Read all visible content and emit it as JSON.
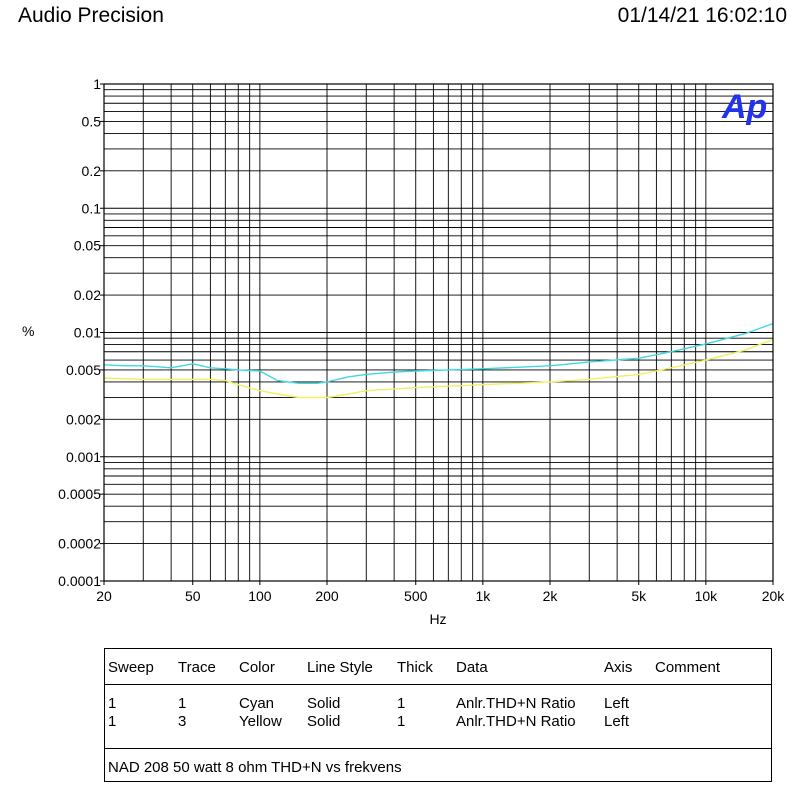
{
  "header": {
    "title": "Audio Precision",
    "timestamp": "01/14/21 16:02:10"
  },
  "chart_data": {
    "type": "line",
    "xscale": "log",
    "yscale": "log",
    "xlabel": "Hz",
    "ylabel": "%",
    "xlim": [
      20,
      20000
    ],
    "ylim": [
      0.0001,
      1
    ],
    "grid": true,
    "logo": "Ap",
    "logo_color": "#2233ee",
    "x_ticks": [
      {
        "value": 20,
        "label": "20"
      },
      {
        "value": 50,
        "label": "50"
      },
      {
        "value": 100,
        "label": "100"
      },
      {
        "value": 200,
        "label": "200"
      },
      {
        "value": 500,
        "label": "500"
      },
      {
        "value": 1000,
        "label": "1k"
      },
      {
        "value": 2000,
        "label": "2k"
      },
      {
        "value": 5000,
        "label": "5k"
      },
      {
        "value": 10000,
        "label": "10k"
      },
      {
        "value": 20000,
        "label": "20k"
      }
    ],
    "y_ticks": [
      {
        "value": 1,
        "label": "1"
      },
      {
        "value": 0.5,
        "label": "0.5"
      },
      {
        "value": 0.2,
        "label": "0.2"
      },
      {
        "value": 0.1,
        "label": "0.1"
      },
      {
        "value": 0.05,
        "label": "0.05"
      },
      {
        "value": 0.02,
        "label": "0.02"
      },
      {
        "value": 0.01,
        "label": "0.01"
      },
      {
        "value": 0.005,
        "label": "0.005"
      },
      {
        "value": 0.002,
        "label": "0.002"
      },
      {
        "value": 0.001,
        "label": "0.001"
      },
      {
        "value": 0.0005,
        "label": "0.0005"
      },
      {
        "value": 0.0002,
        "label": "0.0002"
      },
      {
        "value": 0.0001,
        "label": "0.0001"
      }
    ],
    "series": [
      {
        "name": "Trace 1 Cyan",
        "color": "#40d8e0",
        "x": [
          20,
          25,
          30,
          35,
          40,
          50,
          60,
          70,
          80,
          100,
          120,
          150,
          180,
          200,
          250,
          300,
          400,
          500,
          700,
          1000,
          2000,
          3000,
          5000,
          7000,
          10000,
          15000,
          20000
        ],
        "values": [
          0.0055,
          0.0054,
          0.0054,
          0.0053,
          0.0052,
          0.0056,
          0.0052,
          0.0051,
          0.005,
          0.0049,
          0.0041,
          0.0039,
          0.0039,
          0.004,
          0.0044,
          0.0046,
          0.0048,
          0.0049,
          0.005,
          0.0051,
          0.0054,
          0.0058,
          0.0062,
          0.007,
          0.0081,
          0.0098,
          0.0118
        ]
      },
      {
        "name": "Trace 3 Yellow",
        "color": "#f0f060",
        "x": [
          20,
          30,
          40,
          50,
          60,
          70,
          80,
          100,
          120,
          150,
          200,
          250,
          300,
          500,
          1000,
          2000,
          3000,
          5000,
          7000,
          10000,
          15000,
          20000
        ],
        "values": [
          0.0043,
          0.0042,
          0.0042,
          0.0042,
          0.0042,
          0.0041,
          0.0038,
          0.0034,
          0.0032,
          0.003,
          0.003,
          0.0032,
          0.0034,
          0.0036,
          0.0038,
          0.004,
          0.0042,
          0.0046,
          0.0052,
          0.006,
          0.0072,
          0.0088
        ]
      }
    ]
  },
  "legend": {
    "headers": [
      "Sweep",
      "Trace",
      "Color",
      "Line Style",
      "Thick",
      "Data",
      "Axis",
      "Comment"
    ],
    "rows": [
      [
        "1",
        "1",
        "Cyan",
        "Solid",
        "1",
        "Anlr.THD+N Ratio",
        "Left",
        ""
      ],
      [
        "1",
        "3",
        "Yellow",
        "Solid",
        "1",
        "Anlr.THD+N Ratio",
        "Left",
        ""
      ]
    ],
    "comment": "NAD 208 50 watt 8 ohm THD+N vs frekvens"
  }
}
